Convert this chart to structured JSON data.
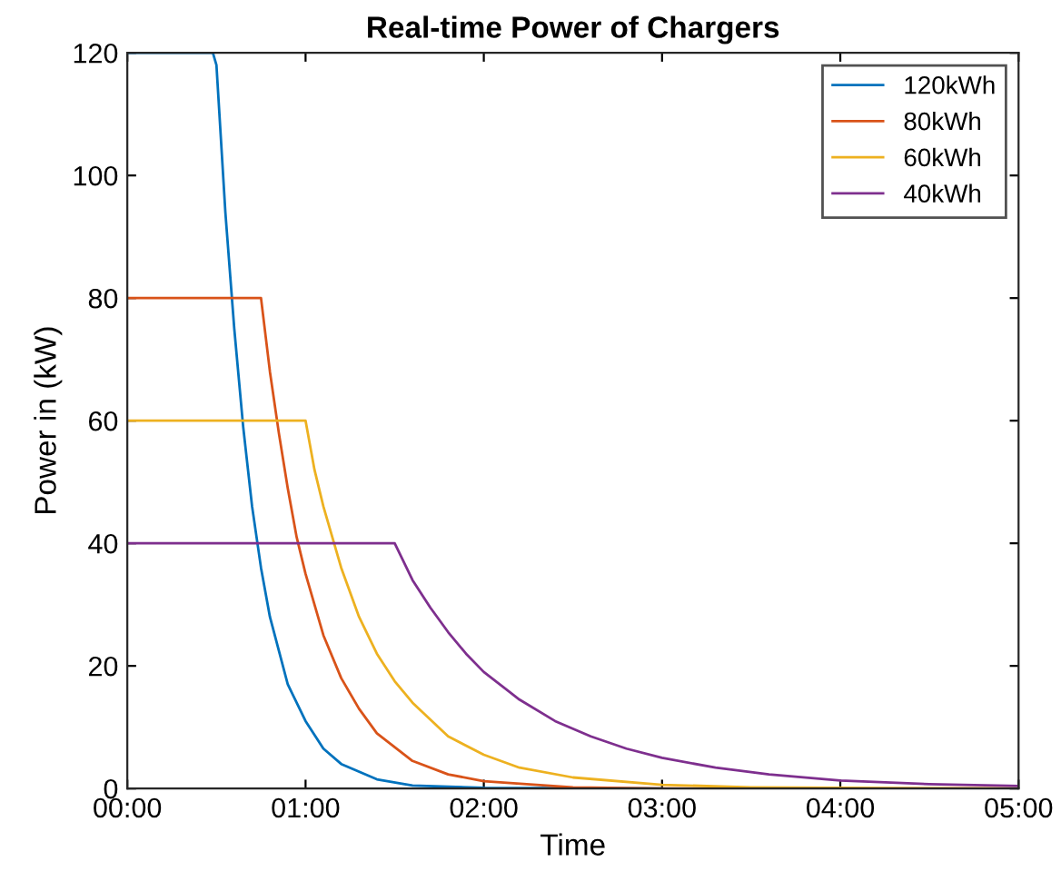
{
  "chart_data": {
    "type": "line",
    "title": "Real-time Power of Chargers",
    "xlabel": "Time",
    "ylabel": "Power in (kW)",
    "xlim": [
      0,
      5
    ],
    "ylim": [
      0,
      120
    ],
    "xticks": [
      {
        "value": 0,
        "label": "00:00"
      },
      {
        "value": 1,
        "label": "01:00"
      },
      {
        "value": 2,
        "label": "02:00"
      },
      {
        "value": 3,
        "label": "03:00"
      },
      {
        "value": 4,
        "label": "04:00"
      },
      {
        "value": 5,
        "label": "05:00"
      }
    ],
    "yticks": [
      0,
      20,
      40,
      60,
      80,
      100,
      120
    ],
    "grid": false,
    "legend": "top right",
    "marker": "none",
    "line_style": "solid",
    "series": [
      {
        "name": "120kWh",
        "color": "#0072bd",
        "x": [
          0,
          0.48,
          0.5,
          0.55,
          0.6,
          0.65,
          0.7,
          0.75,
          0.8,
          0.9,
          1.0,
          1.1,
          1.2,
          1.4,
          1.6,
          2.0,
          3.0
        ],
        "values": [
          120,
          120,
          118,
          94,
          75,
          59,
          46,
          36,
          28,
          17,
          11,
          6.5,
          4,
          1.5,
          0.5,
          0.1,
          0
        ]
      },
      {
        "name": "80kWh",
        "color": "#d95319",
        "x": [
          0,
          0.75,
          0.8,
          0.85,
          0.9,
          0.95,
          1.0,
          1.1,
          1.2,
          1.3,
          1.4,
          1.6,
          1.8,
          2.0,
          2.5,
          3.0,
          4.0,
          5.0
        ],
        "values": [
          80,
          80,
          68,
          58,
          49,
          41,
          35,
          25,
          18,
          13,
          9,
          4.5,
          2.3,
          1.2,
          0.2,
          0,
          0,
          0
        ]
      },
      {
        "name": "60kWh",
        "color": "#edb120",
        "x": [
          0,
          1.0,
          1.05,
          1.1,
          1.2,
          1.3,
          1.4,
          1.5,
          1.6,
          1.8,
          2.0,
          2.2,
          2.5,
          3.0,
          3.5,
          4.0,
          5.0
        ],
        "values": [
          60,
          60,
          52,
          46,
          36,
          28,
          22,
          17.5,
          14,
          8.5,
          5.5,
          3.4,
          1.8,
          0.6,
          0.2,
          0.1,
          0
        ]
      },
      {
        "name": "40kWh",
        "color": "#7e2f8e",
        "x": [
          0,
          1.5,
          1.6,
          1.7,
          1.8,
          1.9,
          2.0,
          2.2,
          2.4,
          2.6,
          2.8,
          3.0,
          3.3,
          3.6,
          4.0,
          4.5,
          5.0
        ],
        "values": [
          40,
          40,
          34,
          29.5,
          25.5,
          22,
          19,
          14.5,
          11,
          8.5,
          6.5,
          5,
          3.4,
          2.3,
          1.3,
          0.7,
          0.4
        ]
      }
    ]
  }
}
